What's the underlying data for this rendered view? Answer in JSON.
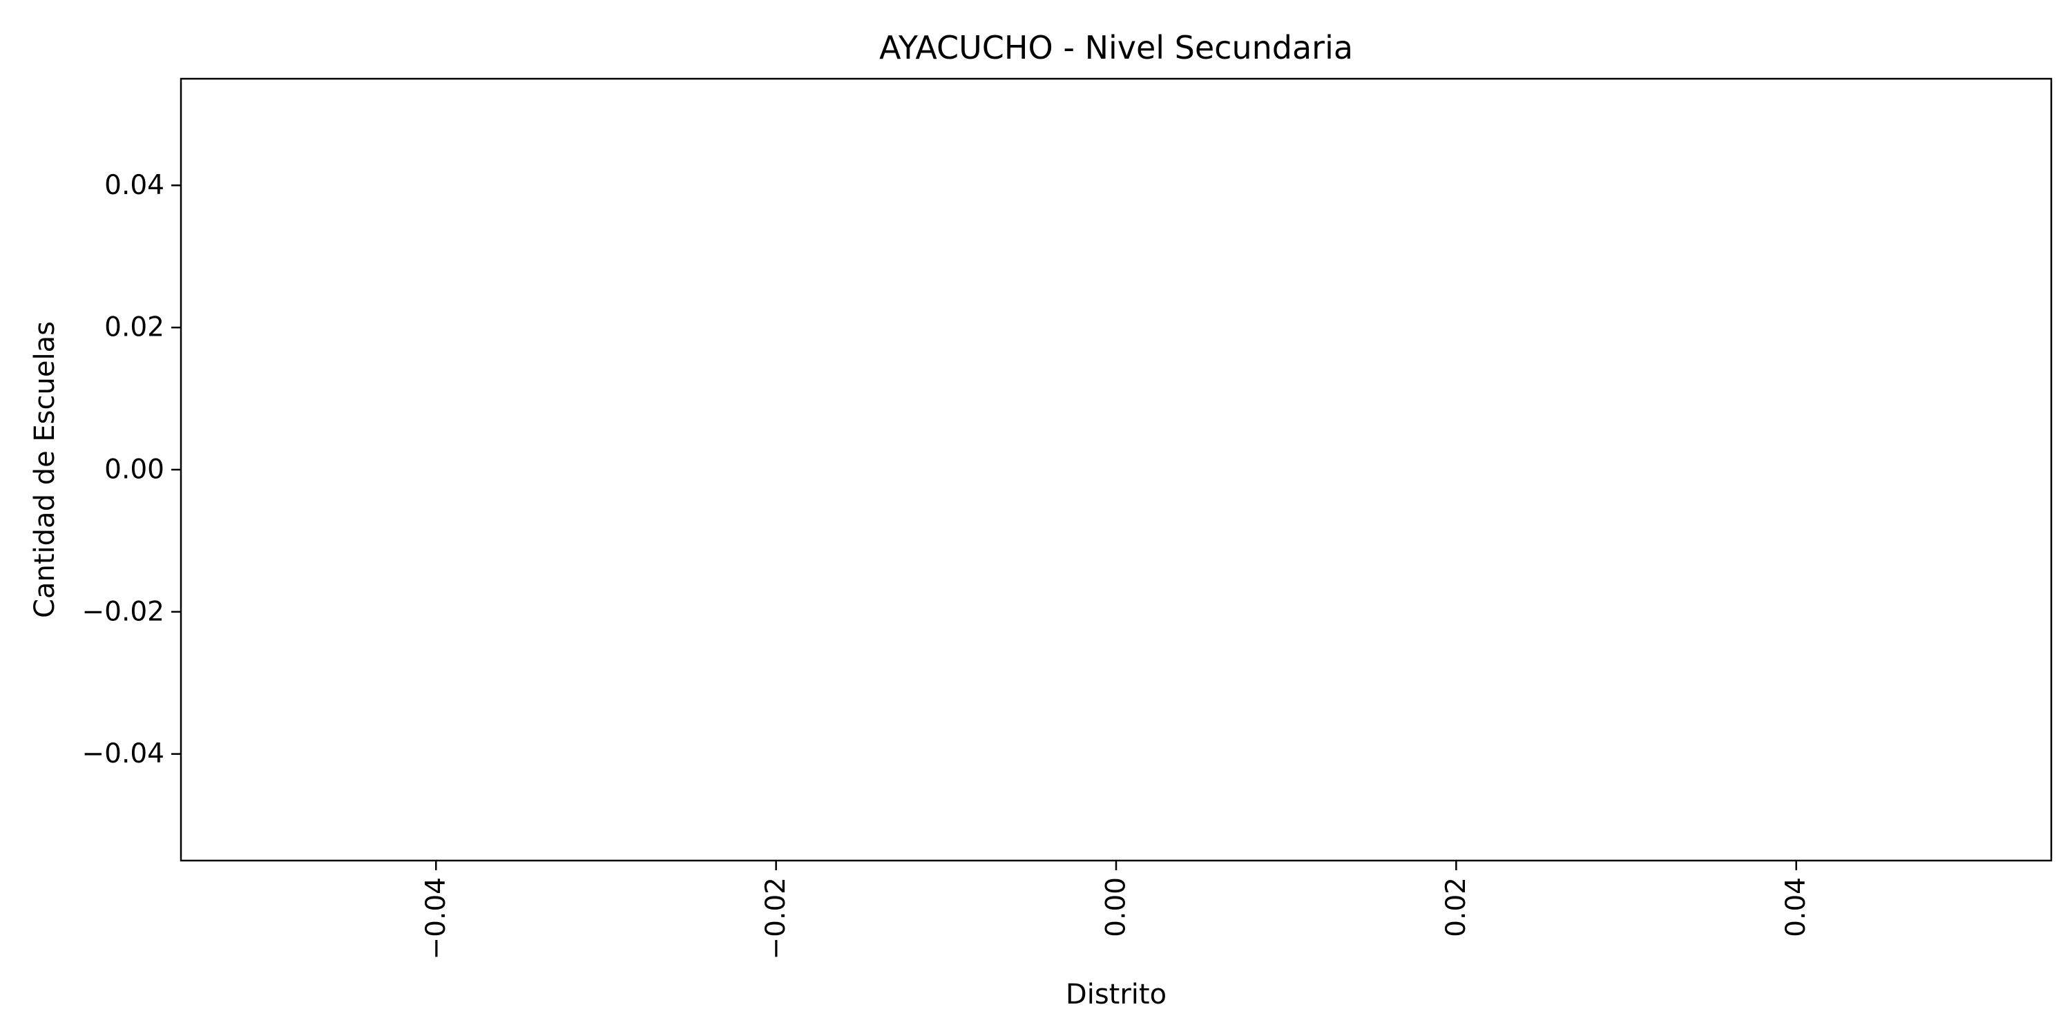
{
  "chart_data": {
    "type": "bar",
    "title": "AYACUCHO - Nivel Secundaria",
    "xlabel": "Distrito",
    "ylabel": "Cantidad de Escuelas",
    "categories": [],
    "values": [],
    "xlim": [
      -0.055,
      0.055
    ],
    "ylim": [
      -0.055,
      0.055
    ],
    "x_ticks": [
      -0.04,
      -0.02,
      0.0,
      0.02,
      0.04
    ],
    "x_tick_labels": [
      "−0.04",
      "−0.02",
      "0.00",
      "0.02",
      "0.04"
    ],
    "x_tick_rotation": "vertical",
    "y_ticks": [
      0.04,
      0.02,
      0.0,
      -0.02,
      -0.04
    ],
    "y_tick_labels": [
      "0.04",
      "0.02",
      "0.00",
      "−0.02",
      "−0.04"
    ],
    "grid": false,
    "legend": "none",
    "colors": {
      "background": "#ffffff",
      "axes": "#000000",
      "text": "#000000"
    }
  }
}
